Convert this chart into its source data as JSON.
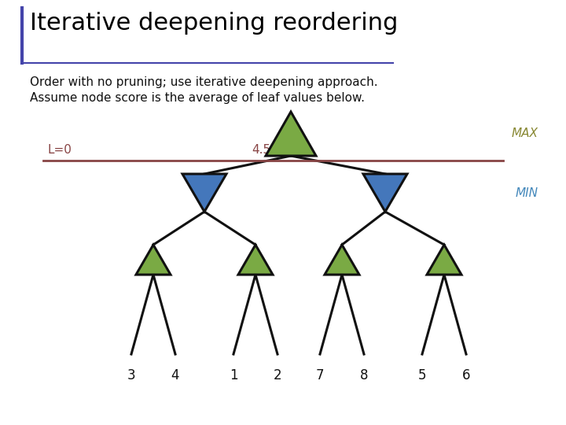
{
  "title": "Iterative deepening reordering",
  "subtitle_line1": "Order with no pruning; use iterative deepening approach.",
  "subtitle_line2": "Assume node score is the average of leaf values below.",
  "title_color": "#000000",
  "title_fontsize": 22,
  "subtitle_fontsize": 11,
  "bg_color": "#ffffff",
  "title_bar_color": "#4444aa",
  "max_label": "MAX",
  "min_label": "MIN",
  "max_color": "#888833",
  "min_color": "#4488bb",
  "L0_label": "L=0",
  "L0_value": "4.5",
  "L0_color": "#884444",
  "green_color": "#7aaa44",
  "blue_color": "#4477bb",
  "leaf_labels": [
    "3",
    "4",
    "1",
    "2",
    "7",
    "8",
    "5",
    "6"
  ],
  "leaf_fontsize": 12,
  "edge_color": "#111111",
  "edge_linewidth": 2.2,
  "horizontal_line_color": "#884444"
}
